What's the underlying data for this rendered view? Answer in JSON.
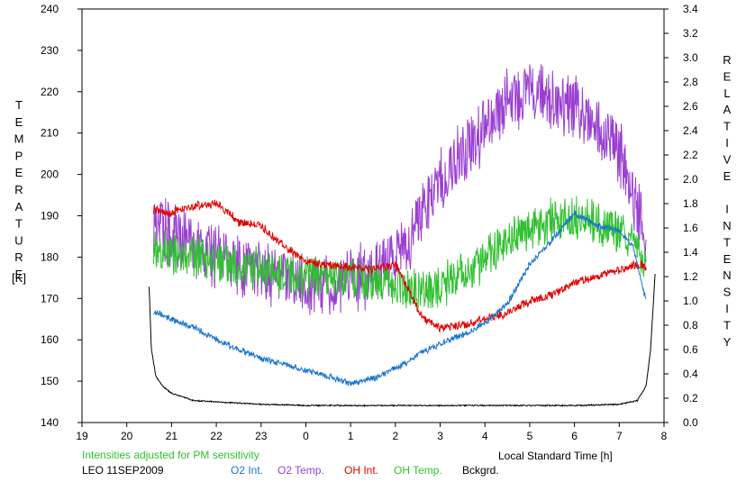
{
  "chart_data": {
    "type": "line",
    "ylabel_left": "TEMPERATURE",
    "ylabel_left_unit": "[K]",
    "ylabel_right": "RELATIVE INTENSITY",
    "xlabel": "Local Standard Time [h]",
    "x_ticks": [
      "19",
      "20",
      "21",
      "22",
      "23",
      "0",
      "1",
      "2",
      "3",
      "4",
      "5",
      "6",
      "7",
      "8"
    ],
    "xlim": [
      19,
      32
    ],
    "ylim_left": [
      140,
      240
    ],
    "y_ticks_left": [
      "140",
      "150",
      "160",
      "170",
      "180",
      "190",
      "200",
      "210",
      "220",
      "230",
      "240"
    ],
    "ylim_right": [
      0,
      3.4
    ],
    "y_ticks_right": [
      "0.0",
      "0.2",
      "0.4",
      "0.6",
      "0.8",
      "1.0",
      "1.2",
      "1.4",
      "1.6",
      "1.8",
      "2.0",
      "2.2",
      "2.4",
      "2.6",
      "2.8",
      "3.0",
      "3.2",
      "3.4"
    ],
    "note": "Intensities adjusted for PM sensitivity",
    "station": "LEO 11SEP2009",
    "legend": [
      {
        "label": "O2 Int.",
        "color": "#1874cd"
      },
      {
        "label": "O2 Temp.",
        "color": "#9a3fd0"
      },
      {
        "label": "OH Int.",
        "color": "#e00000"
      },
      {
        "label": "OH Temp.",
        "color": "#30c030"
      },
      {
        "label": "Bckgrd.",
        "color": "#000000"
      }
    ],
    "series": [
      {
        "name": "O2 Temp.",
        "axis": "left",
        "color": "#9a3fd0",
        "noise": 9,
        "seed": 11,
        "x": [
          20.6,
          21.0,
          21.5,
          22.0,
          22.5,
          23.0,
          23.5,
          24.0,
          24.5,
          25.0,
          25.5,
          26.0,
          26.5,
          27.0,
          27.5,
          28.0,
          28.5,
          29.0,
          29.5,
          30.0,
          30.5,
          31.0,
          31.3,
          31.6
        ],
        "y": [
          188,
          185,
          183,
          180,
          178,
          176,
          175,
          173,
          172,
          174,
          177,
          180,
          188,
          198,
          205,
          212,
          218,
          220,
          219,
          216,
          212,
          205,
          195,
          185
        ]
      },
      {
        "name": "OH Temp.",
        "axis": "left",
        "color": "#30c030",
        "noise": 6,
        "seed": 23,
        "x": [
          20.6,
          21.0,
          21.5,
          22.0,
          22.5,
          23.0,
          23.5,
          24.0,
          24.5,
          25.0,
          25.5,
          26.0,
          26.5,
          27.0,
          27.5,
          28.0,
          28.5,
          29.0,
          29.5,
          30.0,
          30.5,
          31.0,
          31.3,
          31.6
        ],
        "y": [
          182,
          181,
          180,
          179,
          178,
          177,
          176,
          175,
          175,
          175,
          174,
          173,
          172,
          173,
          176,
          180,
          184,
          187,
          189,
          189,
          188,
          187,
          185,
          178
        ]
      },
      {
        "name": "OH Int.",
        "axis": "right",
        "color": "#e00000",
        "noise": 0.04,
        "seed": 37,
        "x": [
          20.6,
          21.0,
          21.5,
          22.0,
          22.3,
          22.5,
          23.0,
          23.5,
          24.0,
          24.5,
          25.0,
          25.5,
          26.0,
          26.3,
          26.6,
          27.0,
          27.5,
          28.0,
          28.5,
          29.0,
          29.5,
          30.0,
          30.5,
          31.0,
          31.3,
          31.6
        ],
        "y": [
          1.75,
          1.72,
          1.78,
          1.8,
          1.72,
          1.65,
          1.62,
          1.45,
          1.32,
          1.3,
          1.28,
          1.26,
          1.3,
          1.1,
          0.85,
          0.78,
          0.8,
          0.85,
          0.9,
          1.0,
          1.05,
          1.15,
          1.2,
          1.25,
          1.3,
          1.28
        ]
      },
      {
        "name": "O2 Int.",
        "axis": "right",
        "color": "#1874cd",
        "noise": 0.03,
        "seed": 53,
        "x": [
          20.6,
          21.0,
          21.5,
          22.0,
          22.5,
          23.0,
          23.5,
          24.0,
          24.5,
          25.0,
          25.5,
          26.0,
          26.3,
          26.6,
          27.0,
          27.5,
          28.0,
          28.5,
          29.0,
          29.5,
          30.0,
          30.5,
          31.0,
          31.3,
          31.6
        ],
        "y": [
          0.92,
          0.85,
          0.78,
          0.68,
          0.6,
          0.53,
          0.48,
          0.43,
          0.38,
          0.32,
          0.36,
          0.45,
          0.5,
          0.58,
          0.65,
          0.72,
          0.82,
          0.98,
          1.3,
          1.5,
          1.72,
          1.62,
          1.58,
          1.45,
          1.0
        ]
      },
      {
        "name": "Bckgrd.",
        "axis": "right",
        "color": "#000000",
        "noise": 0.006,
        "seed": 71,
        "x": [
          20.5,
          20.55,
          20.65,
          20.8,
          21.0,
          21.5,
          22.0,
          23.0,
          24.0,
          25.0,
          26.0,
          27.0,
          28.0,
          29.0,
          30.0,
          31.0,
          31.4,
          31.6,
          31.7,
          31.8
        ],
        "y": [
          1.12,
          0.6,
          0.38,
          0.3,
          0.24,
          0.18,
          0.17,
          0.15,
          0.14,
          0.14,
          0.14,
          0.14,
          0.14,
          0.14,
          0.14,
          0.15,
          0.18,
          0.3,
          0.6,
          1.22
        ]
      }
    ]
  }
}
